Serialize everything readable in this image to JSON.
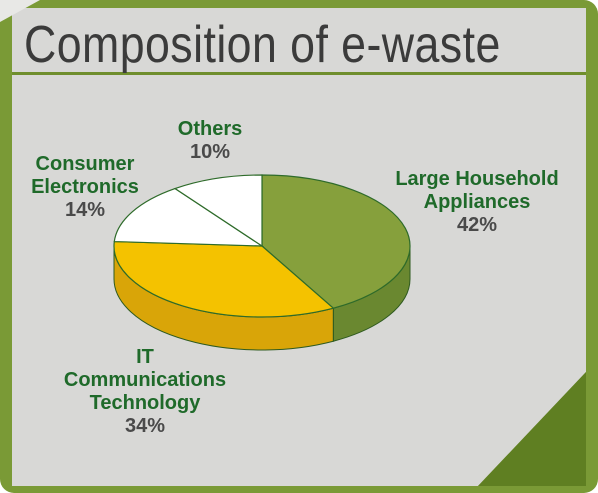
{
  "title": "Composition of e-waste",
  "colors": {
    "frame_green": "#7a9a36",
    "panel_gray": "#d8d8d6",
    "label_green": "#1f6a2a",
    "percent_gray": "#4a4a4a"
  },
  "chart_data": {
    "type": "pie",
    "style": "3d",
    "title": "Composition of e-waste",
    "slices": [
      {
        "label": "Large Household Appliances",
        "value": 42,
        "percent_label": "42%",
        "color": "#86a03c",
        "side_color": "#6a8830"
      },
      {
        "label": "IT Communications Technology",
        "value": 34,
        "percent_label": "34%",
        "color": "#f4c200",
        "side_color": "#d9a508"
      },
      {
        "label": "Consumer Electronics",
        "value": 14,
        "percent_label": "14%",
        "color": "#ffffff",
        "side_color": "#e8e8e8"
      },
      {
        "label": "Others",
        "value": 10,
        "percent_label": "10%",
        "color": "#ffffff",
        "side_color": "#e8e8e8"
      }
    ]
  },
  "labels": {
    "large_name_line1": "Large Household",
    "large_name_line2": "Appliances",
    "large_pct": "42%",
    "it_name_line1": "IT",
    "it_name_line2": "Communications",
    "it_name_line3": "Technology",
    "it_pct": "34%",
    "consumer_name_line1": "Consumer",
    "consumer_name_line2": "Electronics",
    "consumer_pct": "14%",
    "others_name": "Others",
    "others_pct": "10%"
  }
}
